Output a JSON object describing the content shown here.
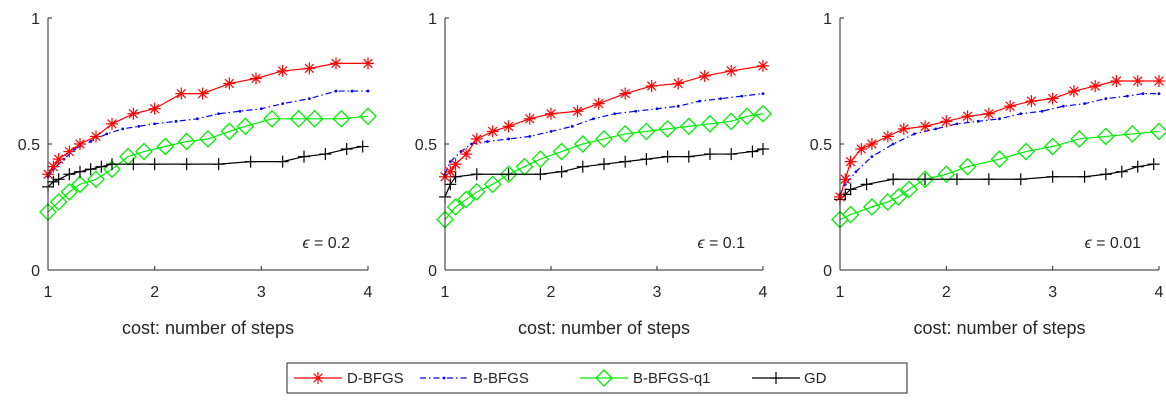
{
  "chart_data": [
    {
      "type": "line",
      "xlabel": "cost: number of steps",
      "ylabel": "",
      "xlim": [
        1,
        4
      ],
      "ylim": [
        0,
        1
      ],
      "xticks": [
        "1",
        "2",
        "3",
        "4"
      ],
      "yticks": [
        "0",
        "0.5",
        "1"
      ],
      "annotation": {
        "symbol": "ϵ",
        "text": " = 0.2"
      },
      "series": [
        {
          "name": "D-BFGS",
          "x": [
            1.0,
            1.05,
            1.1,
            1.2,
            1.3,
            1.45,
            1.6,
            1.8,
            2.0,
            2.25,
            2.45,
            2.7,
            2.95,
            3.2,
            3.45,
            3.7,
            4.0
          ],
          "y": [
            0.38,
            0.41,
            0.44,
            0.47,
            0.5,
            0.53,
            0.58,
            0.62,
            0.64,
            0.7,
            0.7,
            0.74,
            0.76,
            0.79,
            0.8,
            0.82,
            0.82
          ]
        },
        {
          "name": "B-BFGS",
          "x": [
            1.0,
            1.05,
            1.15,
            1.25,
            1.4,
            1.55,
            1.7,
            1.85,
            2.0,
            2.2,
            2.4,
            2.6,
            2.8,
            3.0,
            3.2,
            3.45,
            3.7,
            3.85,
            4.0
          ],
          "y": [
            0.37,
            0.4,
            0.44,
            0.48,
            0.51,
            0.54,
            0.56,
            0.57,
            0.58,
            0.59,
            0.6,
            0.62,
            0.63,
            0.64,
            0.66,
            0.68,
            0.71,
            0.71,
            0.71
          ]
        },
        {
          "name": "B-BFGS-q1",
          "x": [
            1.0,
            1.1,
            1.2,
            1.3,
            1.45,
            1.6,
            1.75,
            1.9,
            2.1,
            2.3,
            2.5,
            2.7,
            2.85,
            3.1,
            3.35,
            3.5,
            3.75,
            4.0
          ],
          "y": [
            0.23,
            0.27,
            0.31,
            0.34,
            0.36,
            0.4,
            0.45,
            0.47,
            0.49,
            0.51,
            0.52,
            0.55,
            0.57,
            0.6,
            0.6,
            0.6,
            0.6,
            0.61
          ]
        },
        {
          "name": "GD",
          "x": [
            1.0,
            1.05,
            1.1,
            1.2,
            1.3,
            1.4,
            1.5,
            1.6,
            1.8,
            2.0,
            2.3,
            2.6,
            2.9,
            3.2,
            3.4,
            3.6,
            3.8,
            3.95
          ],
          "y": [
            0.33,
            0.35,
            0.36,
            0.38,
            0.39,
            0.4,
            0.41,
            0.42,
            0.42,
            0.42,
            0.42,
            0.42,
            0.43,
            0.43,
            0.45,
            0.46,
            0.48,
            0.49
          ]
        }
      ]
    },
    {
      "type": "line",
      "xlabel": "cost: number of steps",
      "ylabel": "",
      "xlim": [
        1,
        4
      ],
      "ylim": [
        0,
        1
      ],
      "xticks": [
        "1",
        "2",
        "3",
        "4"
      ],
      "yticks": [
        "0",
        "0.5",
        "1"
      ],
      "annotation": {
        "symbol": "ϵ",
        "text": " = 0.1"
      },
      "series": [
        {
          "name": "D-BFGS",
          "x": [
            1.0,
            1.05,
            1.1,
            1.2,
            1.3,
            1.45,
            1.6,
            1.8,
            2.0,
            2.25,
            2.45,
            2.7,
            2.95,
            3.2,
            3.45,
            3.7,
            4.0
          ],
          "y": [
            0.37,
            0.39,
            0.42,
            0.46,
            0.52,
            0.55,
            0.57,
            0.6,
            0.62,
            0.63,
            0.66,
            0.7,
            0.73,
            0.74,
            0.77,
            0.79,
            0.81
          ]
        },
        {
          "name": "B-BFGS",
          "x": [
            1.0,
            1.05,
            1.15,
            1.25,
            1.4,
            1.6,
            1.8,
            2.0,
            2.2,
            2.4,
            2.6,
            2.8,
            3.0,
            3.2,
            3.4,
            3.6,
            3.8,
            4.0
          ],
          "y": [
            0.38,
            0.43,
            0.47,
            0.5,
            0.51,
            0.52,
            0.53,
            0.55,
            0.57,
            0.6,
            0.62,
            0.63,
            0.64,
            0.65,
            0.67,
            0.68,
            0.69,
            0.7
          ]
        },
        {
          "name": "B-BFGS-q1",
          "x": [
            1.0,
            1.1,
            1.2,
            1.3,
            1.45,
            1.6,
            1.75,
            1.9,
            2.1,
            2.3,
            2.5,
            2.7,
            2.9,
            3.1,
            3.3,
            3.5,
            3.7,
            3.85,
            4.0
          ],
          "y": [
            0.2,
            0.25,
            0.28,
            0.31,
            0.34,
            0.38,
            0.41,
            0.44,
            0.47,
            0.5,
            0.52,
            0.54,
            0.55,
            0.56,
            0.57,
            0.58,
            0.59,
            0.61,
            0.62
          ]
        },
        {
          "name": "GD",
          "x": [
            1.0,
            1.05,
            1.1,
            1.3,
            1.6,
            1.9,
            2.1,
            2.3,
            2.5,
            2.7,
            2.9,
            3.1,
            3.3,
            3.5,
            3.7,
            3.9,
            4.0
          ],
          "y": [
            0.29,
            0.34,
            0.37,
            0.38,
            0.38,
            0.38,
            0.39,
            0.41,
            0.42,
            0.43,
            0.44,
            0.45,
            0.45,
            0.46,
            0.46,
            0.47,
            0.48
          ]
        }
      ]
    },
    {
      "type": "line",
      "xlabel": "cost: number of steps",
      "ylabel": "",
      "xlim": [
        1,
        4
      ],
      "ylim": [
        0,
        1
      ],
      "xticks": [
        "1",
        "2",
        "3",
        "4"
      ],
      "yticks": [
        "0",
        "0.5",
        "1"
      ],
      "annotation": {
        "symbol": "ϵ",
        "text": " = 0.01"
      },
      "series": [
        {
          "name": "D-BFGS",
          "x": [
            1.0,
            1.05,
            1.1,
            1.2,
            1.3,
            1.45,
            1.6,
            1.8,
            2.0,
            2.2,
            2.4,
            2.6,
            2.8,
            3.0,
            3.2,
            3.4,
            3.6,
            3.8,
            4.0
          ],
          "y": [
            0.29,
            0.36,
            0.43,
            0.48,
            0.5,
            0.53,
            0.56,
            0.57,
            0.59,
            0.61,
            0.62,
            0.65,
            0.67,
            0.68,
            0.71,
            0.73,
            0.75,
            0.75,
            0.75
          ]
        },
        {
          "name": "B-BFGS",
          "x": [
            1.0,
            1.05,
            1.15,
            1.3,
            1.5,
            1.7,
            1.9,
            2.1,
            2.3,
            2.5,
            2.7,
            2.9,
            3.1,
            3.3,
            3.5,
            3.7,
            3.85,
            4.0
          ],
          "y": [
            0.3,
            0.34,
            0.39,
            0.45,
            0.5,
            0.54,
            0.56,
            0.58,
            0.59,
            0.6,
            0.62,
            0.63,
            0.65,
            0.66,
            0.68,
            0.69,
            0.7,
            0.7
          ]
        },
        {
          "name": "B-BFGS-q1",
          "x": [
            1.0,
            1.1,
            1.3,
            1.45,
            1.55,
            1.65,
            1.8,
            2.0,
            2.2,
            2.5,
            2.75,
            3.0,
            3.25,
            3.5,
            3.75,
            4.0
          ],
          "y": [
            0.2,
            0.22,
            0.25,
            0.27,
            0.29,
            0.32,
            0.36,
            0.38,
            0.41,
            0.44,
            0.47,
            0.49,
            0.52,
            0.53,
            0.54,
            0.55
          ]
        },
        {
          "name": "GD",
          "x": [
            1.0,
            1.05,
            1.1,
            1.25,
            1.5,
            1.8,
            2.1,
            2.4,
            2.7,
            3.0,
            3.3,
            3.5,
            3.65,
            3.8,
            3.95
          ],
          "y": [
            0.28,
            0.3,
            0.32,
            0.34,
            0.36,
            0.36,
            0.36,
            0.36,
            0.36,
            0.37,
            0.37,
            0.38,
            0.39,
            0.41,
            0.42
          ]
        }
      ]
    }
  ],
  "legend": {
    "placement": "bottom-center",
    "entries": [
      {
        "label": "D-BFGS",
        "color": "#ff0000",
        "marker": "asterisk",
        "style": "solid"
      },
      {
        "label": "B-BFGS",
        "color": "#0000ff",
        "marker": "dot",
        "style": "dashdot"
      },
      {
        "label": "B-BFGS-q1",
        "color": "#00ee00",
        "marker": "diamond",
        "style": "solid"
      },
      {
        "label": "GD",
        "color": "#000000",
        "marker": "plus",
        "style": "solid"
      }
    ]
  }
}
